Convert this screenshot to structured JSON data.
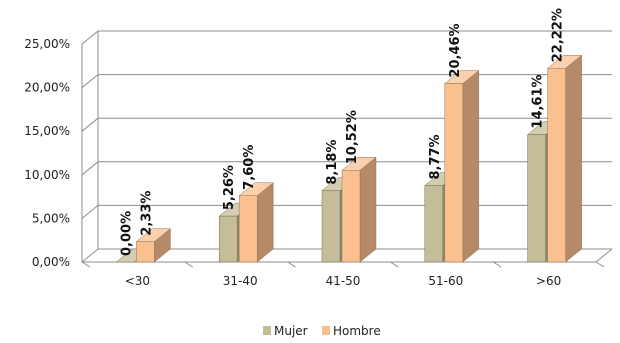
{
  "chart_data": {
    "type": "bar",
    "categories": [
      "<30",
      "31-40",
      "41-50",
      "51-60",
      ">60"
    ],
    "series": [
      {
        "name": "Mujer",
        "values": [
          0.0,
          5.26,
          8.18,
          8.77,
          14.61
        ],
        "labels": [
          "0,00%",
          "5,26%",
          "8,18%",
          "8,77%",
          "14,61%"
        ],
        "color": "#c4bd97"
      },
      {
        "name": "Hombre",
        "values": [
          2.33,
          7.6,
          10.52,
          20.46,
          22.22
        ],
        "labels": [
          "2,33%",
          "7,60%",
          "10,52%",
          "20,46%",
          "22,22%"
        ],
        "color": "#fac090"
      }
    ],
    "y_ticks": [
      "0,00%",
      "5,00%",
      "10,00%",
      "15,00%",
      "20,00%",
      "25,00%"
    ],
    "ylim": [
      0,
      25
    ],
    "grid": true,
    "legend_position": "bottom"
  }
}
